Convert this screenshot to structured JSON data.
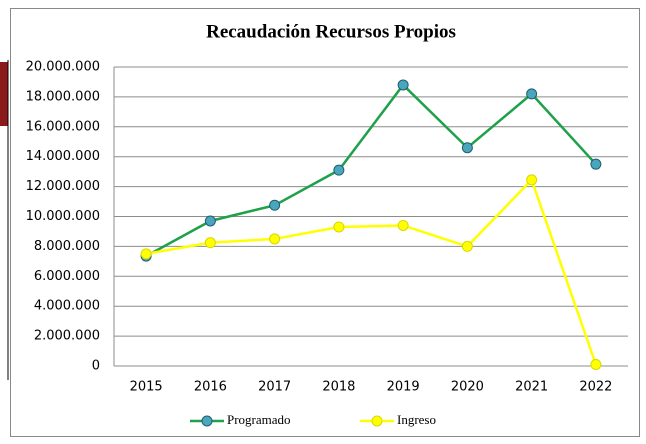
{
  "chart_data": {
    "type": "line",
    "title": "Recaudación Recursos Propios",
    "categories": [
      "2015",
      "2016",
      "2017",
      "2018",
      "2019",
      "2020",
      "2021",
      "2022"
    ],
    "series": [
      {
        "name": "Programado",
        "color": "#1fa04a",
        "marker_color": "#4aa6bd",
        "values": [
          7350000,
          9700000,
          10750000,
          13100000,
          18800000,
          14600000,
          18200000,
          13500000
        ]
      },
      {
        "name": "Ingreso",
        "color": "#ffff00",
        "marker_color": "#ffff00",
        "values": [
          7500000,
          8250000,
          8500000,
          9300000,
          9400000,
          8000000,
          12450000,
          100000
        ]
      }
    ],
    "ylim": [
      0,
      20000000
    ],
    "yticks": [
      0,
      {
        "value": 2000000,
        "label": "2.000.000"
      },
      {
        "value": 4000000,
        "label": "4.000.000"
      },
      {
        "value": 6000000,
        "label": "6.000.000"
      },
      {
        "value": 8000000,
        "label": "8.000.000"
      },
      {
        "value": 10000000,
        "label": "10.000.000"
      },
      {
        "value": 12000000,
        "label": "12.000.000"
      },
      {
        "value": 14000000,
        "label": "14.000.000"
      },
      {
        "value": 16000000,
        "label": "16.000.000"
      },
      {
        "value": 18000000,
        "label": "18.000.000"
      },
      {
        "value": 20000000,
        "label": "20.000.000"
      }
    ],
    "grid": true,
    "legend": "bottom"
  }
}
